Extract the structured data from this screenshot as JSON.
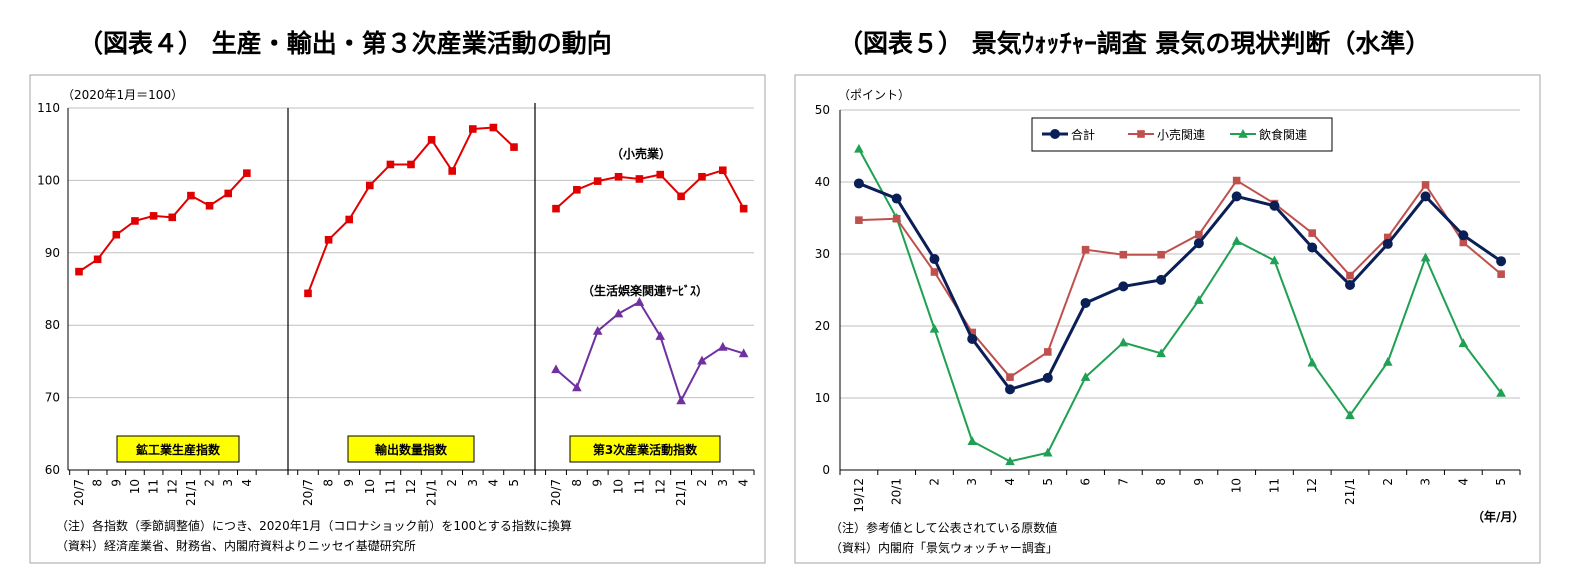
{
  "chart_data": [
    {
      "type": "line",
      "title": "（図表４） 生産・輸出・第３次産業活動の動向",
      "unit_label": "（2020年1月＝100）",
      "ylim": [
        60,
        110
      ],
      "yticks": [
        "60",
        "70",
        "80",
        "90",
        "100",
        "110"
      ],
      "grid": true,
      "panels": [
        {
          "categories": [
            "20/7",
            "8",
            "9",
            "10",
            "11",
            "12",
            "21/1",
            "2",
            "3",
            "4"
          ],
          "label": "鉱工業生産指数",
          "series": [
            {
              "values": [
                87.4,
                89.1,
                92.5,
                94.4,
                95.1,
                94.9,
                97.9,
                96.5,
                98.2,
                101.0
              ],
              "color": "#e00000",
              "marker": "square"
            }
          ]
        },
        {
          "categories": [
            "20/7",
            "8",
            "9",
            "10",
            "11",
            "12",
            "21/1",
            "2",
            "3",
            "4",
            "5"
          ],
          "label": "輸出数量指数",
          "series": [
            {
              "values": [
                84.4,
                91.8,
                94.6,
                99.3,
                102.2,
                102.2,
                105.6,
                101.3,
                107.1,
                107.3,
                104.6
              ],
              "color": "#e00000",
              "marker": "square"
            }
          ]
        },
        {
          "categories": [
            "20/7",
            "8",
            "9",
            "10",
            "11",
            "12",
            "21/1",
            "2",
            "3",
            "4"
          ],
          "label": "第3次産業活動指数",
          "series": [
            {
              "name": "（小売業）",
              "values": [
                96.1,
                98.7,
                99.9,
                100.5,
                100.2,
                100.8,
                97.8,
                100.5,
                101.4,
                96.1
              ],
              "color": "#e00000",
              "marker": "square"
            },
            {
              "name": "（生活娯楽関連ｻｰﾋﾞｽ）",
              "values": [
                73.9,
                71.4,
                79.2,
                81.6,
                83.2,
                78.5,
                69.6,
                75.1,
                77.0,
                76.1
              ],
              "color": "#7030a0",
              "marker": "triangle"
            }
          ]
        }
      ],
      "notes": [
        "（注）各指数（季節調整値）につき、2020年1月（コロナショック前）を100とする指数に換算",
        "（資料）経済産業省、財務省、内閣府資料よりニッセイ基礎研究所"
      ]
    },
    {
      "type": "line",
      "title": "（図表５） 景気ｳｫｯﾁｬｰ調査 景気の現状判断（水準）",
      "unit_label": "（ポイント）",
      "x_unit": "（年/月）",
      "ylim": [
        0,
        50
      ],
      "yticks": [
        "0",
        "10",
        "20",
        "30",
        "40",
        "50"
      ],
      "grid": true,
      "legend_position": "top-center",
      "categories": [
        "19/12",
        "20/1",
        "2",
        "3",
        "4",
        "5",
        "6",
        "7",
        "8",
        "9",
        "10",
        "11",
        "12",
        "21/1",
        "2",
        "3",
        "4",
        "5"
      ],
      "series": [
        {
          "name": "合計",
          "values": [
            39.8,
            37.7,
            29.3,
            18.2,
            11.2,
            12.8,
            23.2,
            25.5,
            26.4,
            31.5,
            38.0,
            36.7,
            30.9,
            25.7,
            31.4,
            38.0,
            32.6,
            29.0
          ],
          "color": "#0b1f57",
          "marker": "circle"
        },
        {
          "name": "小売関連",
          "values": [
            34.7,
            34.9,
            27.5,
            19.1,
            12.9,
            16.4,
            30.6,
            29.9,
            29.9,
            32.7,
            40.2,
            37.0,
            32.9,
            27.0,
            32.3,
            39.6,
            31.6,
            27.2
          ],
          "color": "#c0504d",
          "marker": "square"
        },
        {
          "name": "飲食関連",
          "values": [
            44.6,
            35.0,
            19.6,
            4.0,
            1.2,
            2.4,
            12.9,
            17.7,
            16.2,
            23.6,
            31.8,
            29.1,
            14.9,
            7.6,
            15.0,
            29.5,
            17.6,
            10.7
          ],
          "color": "#1fa052",
          "marker": "triangle"
        }
      ],
      "notes": [
        "（注）参考値として公表されている原数値",
        "（資料）内閣府「景気ウォッチャー調査」"
      ]
    }
  ]
}
